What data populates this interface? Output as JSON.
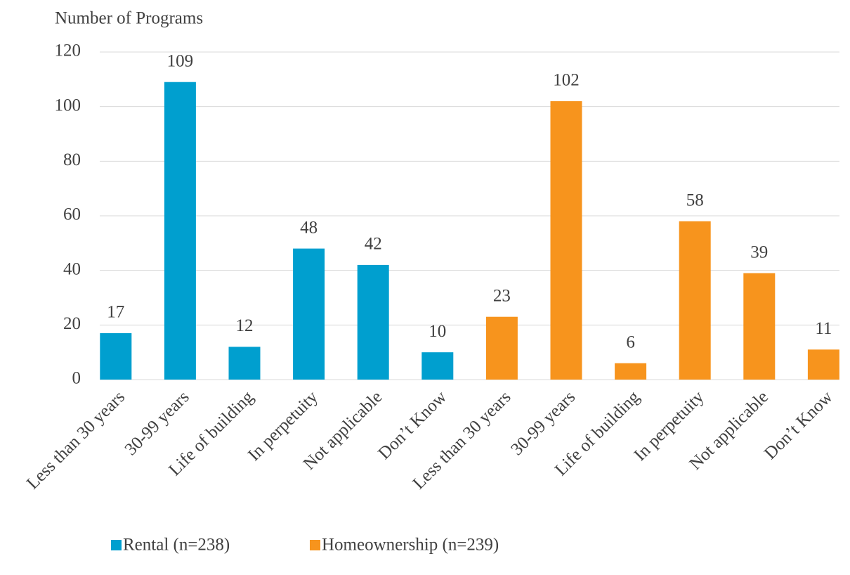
{
  "chart_data": {
    "type": "bar",
    "y_axis_label": "Number of Programs",
    "categories": [
      "Less than 30 years",
      "30-99 years",
      "Life of building",
      "In perpetuity",
      "Not applicable",
      "Don’t Know",
      "Less than 30 years",
      "30-99 years",
      "Life of building",
      "In perpetuity",
      "Not applicable",
      "Don’t Know"
    ],
    "series": [
      {
        "name": "Rental (n=238)",
        "color": "#009fcf",
        "values": [
          17,
          109,
          12,
          48,
          42,
          10,
          null,
          null,
          null,
          null,
          null,
          null
        ]
      },
      {
        "name": "Homeownership (n=239)",
        "color": "#f7941d",
        "values": [
          null,
          null,
          null,
          null,
          null,
          null,
          23,
          102,
          6,
          58,
          39,
          11
        ]
      }
    ],
    "ylim": [
      0,
      120
    ],
    "yticks": [
      0,
      20,
      40,
      60,
      80,
      100,
      120
    ],
    "grid": true,
    "legend": "bottom"
  }
}
